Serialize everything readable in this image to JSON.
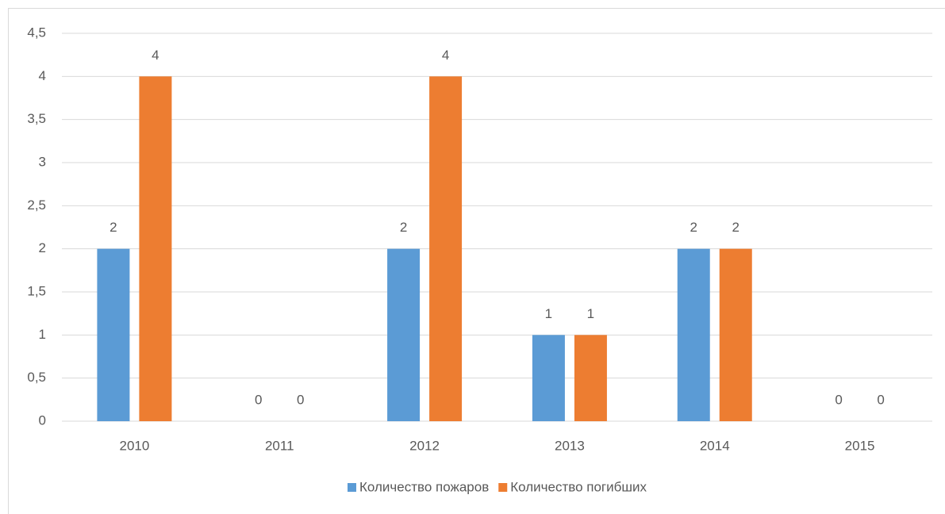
{
  "chart_data": {
    "type": "bar",
    "categories": [
      "2010",
      "2011",
      "2012",
      "2013",
      "2014",
      "2015"
    ],
    "series": [
      {
        "name": "Количество пожаров",
        "color": "#5b9bd5",
        "values": [
          2,
          0,
          2,
          1,
          2,
          0
        ]
      },
      {
        "name": "Количество погибших",
        "color": "#ed7d31",
        "values": [
          4,
          0,
          4,
          1,
          2,
          0
        ]
      }
    ],
    "ylim": [
      0,
      4.5
    ],
    "yticks": [
      0,
      {
        "value": 0.5,
        "label": "0,5"
      },
      1,
      {
        "value": 1.5,
        "label": "1,5"
      },
      2,
      {
        "value": 2.5,
        "label": "2,5"
      },
      3,
      {
        "value": 3.5,
        "label": "3,5"
      },
      4,
      {
        "value": 4.5,
        "label": "4,5"
      }
    ],
    "grid": true,
    "legend": "bottom"
  }
}
